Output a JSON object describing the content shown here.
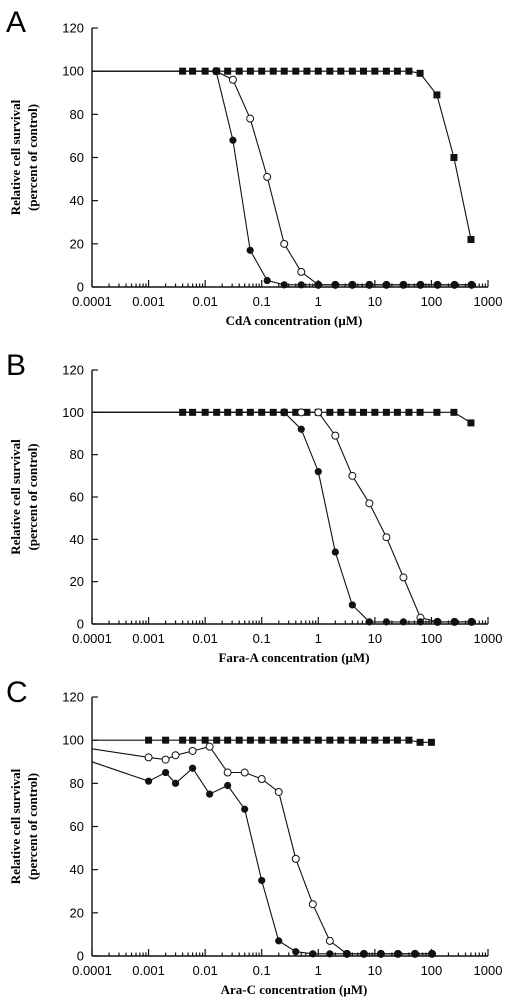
{
  "chart_data": [
    {
      "type": "line",
      "panel_label": "A",
      "xlabel": "CdA  concentration  (μM)",
      "ylabel_line1": "Relative  cell  survival",
      "ylabel_line2": "(percent  of  control)",
      "xscale": "log",
      "xlim": [
        0.0001,
        1000
      ],
      "ylim": [
        0,
        120
      ],
      "xticks": [
        "0.0001",
        "0.001",
        "0.01",
        "0.1",
        "1",
        "10",
        "100",
        "1000"
      ],
      "yticks": [
        "0",
        "20",
        "40",
        "60",
        "80",
        "100",
        "120"
      ],
      "grid": false,
      "series": [
        {
          "marker": "filled-square",
          "x": [
            0.0001,
            0.004,
            0.006,
            0.01,
            0.016,
            0.025,
            0.04,
            0.063,
            0.1,
            0.16,
            0.25,
            0.4,
            0.63,
            1,
            1.6,
            2.5,
            4,
            6.3,
            10,
            16,
            25,
            40,
            63,
            125,
            250,
            500
          ],
          "y": [
            100,
            100,
            100,
            100,
            100,
            100,
            100,
            100,
            100,
            100,
            100,
            100,
            100,
            100,
            100,
            100,
            100,
            100,
            100,
            100,
            100,
            100,
            99,
            89,
            60,
            22
          ]
        },
        {
          "marker": "open-circle",
          "x": [
            0.0001,
            0.0156,
            0.031,
            0.0625,
            0.125,
            0.25,
            0.5,
            1,
            2,
            4,
            8,
            16,
            32,
            64,
            128,
            256,
            512
          ],
          "y": [
            100,
            100,
            96,
            78,
            51,
            20,
            7,
            1,
            1,
            1,
            1,
            1,
            1,
            1,
            1,
            1,
            1
          ]
        },
        {
          "marker": "filled-circle",
          "x": [
            0.0001,
            0.0156,
            0.031,
            0.0625,
            0.125,
            0.25,
            0.5,
            1,
            2,
            4,
            8,
            16,
            32,
            64,
            128,
            256,
            512
          ],
          "y": [
            100,
            100,
            68,
            17,
            3,
            1,
            1,
            1,
            1,
            1,
            1,
            1,
            1,
            1,
            1,
            1,
            1
          ]
        }
      ]
    },
    {
      "type": "line",
      "panel_label": "B",
      "xlabel": "Fara-A  concentration  (μM)",
      "ylabel_line1": "Relative  cell  survival",
      "ylabel_line2": "(percent  of  control)",
      "xscale": "log",
      "xlim": [
        0.0001,
        1000
      ],
      "ylim": [
        0,
        120
      ],
      "xticks": [
        "0.0001",
        "0.001",
        "0.01",
        "0.1",
        "1",
        "10",
        "100",
        "1000"
      ],
      "yticks": [
        "0",
        "20",
        "40",
        "60",
        "80",
        "100",
        "120"
      ],
      "grid": false,
      "series": [
        {
          "marker": "filled-square",
          "x": [
            0.0001,
            0.004,
            0.006,
            0.01,
            0.016,
            0.025,
            0.04,
            0.063,
            0.1,
            0.16,
            0.25,
            0.4,
            0.63,
            1,
            1.6,
            2.5,
            4,
            6.3,
            10,
            16,
            25,
            40,
            63,
            125,
            250,
            500
          ],
          "y": [
            100,
            100,
            100,
            100,
            100,
            100,
            100,
            100,
            100,
            100,
            100,
            100,
            100,
            100,
            100,
            100,
            100,
            100,
            100,
            100,
            100,
            100,
            100,
            100,
            100,
            95
          ]
        },
        {
          "marker": "open-circle",
          "x": [
            0.0001,
            0.25,
            0.5,
            1,
            2,
            4,
            8,
            16,
            32,
            64,
            128,
            256,
            512
          ],
          "y": [
            100,
            100,
            100,
            100,
            89,
            70,
            57,
            41,
            22,
            3,
            1,
            1,
            1
          ]
        },
        {
          "marker": "filled-circle",
          "x": [
            0.0001,
            0.25,
            0.5,
            1,
            2,
            4,
            8,
            16,
            32,
            64,
            128,
            256,
            512
          ],
          "y": [
            100,
            100,
            92,
            72,
            34,
            9,
            1,
            1,
            1,
            1,
            1,
            1,
            1
          ]
        }
      ]
    },
    {
      "type": "line",
      "panel_label": "C",
      "xlabel": "Ara-C  concentration  (μM)",
      "ylabel_line1": "Relative  cell  survival",
      "ylabel_line2": "(percent  of  control)",
      "xscale": "log",
      "xlim": [
        0.0001,
        1000
      ],
      "ylim": [
        0,
        120
      ],
      "xticks": [
        "0.0001",
        "0.001",
        "0.01",
        "0.1",
        "1",
        "10",
        "100",
        "1000"
      ],
      "yticks": [
        "0",
        "20",
        "40",
        "60",
        "80",
        "100",
        "120"
      ],
      "grid": false,
      "series": [
        {
          "marker": "filled-square",
          "x": [
            0.0001,
            0.001,
            0.002,
            0.004,
            0.006,
            0.01,
            0.016,
            0.025,
            0.04,
            0.063,
            0.1,
            0.16,
            0.25,
            0.4,
            0.63,
            1,
            1.6,
            2.5,
            4,
            6.3,
            10,
            16,
            25,
            40,
            63,
            100
          ],
          "y": [
            100,
            100,
            100,
            100,
            100,
            100,
            100,
            100,
            100,
            100,
            100,
            100,
            100,
            100,
            100,
            100,
            100,
            100,
            100,
            100,
            100,
            100,
            100,
            100,
            99,
            99
          ]
        },
        {
          "marker": "open-circle",
          "x": [
            0.0001,
            0.001,
            0.002,
            0.003,
            0.006,
            0.012,
            0.025,
            0.05,
            0.1,
            0.2,
            0.4,
            0.8,
            1.6,
            3.2,
            6.4,
            12.8,
            25.6,
            51.2,
            102.4
          ],
          "y": [
            96,
            92,
            91,
            93,
            95,
            97,
            85,
            85,
            82,
            76,
            45,
            24,
            7,
            1,
            1,
            1,
            1,
            1,
            1
          ]
        },
        {
          "marker": "filled-circle",
          "x": [
            0.0001,
            0.001,
            0.002,
            0.003,
            0.006,
            0.012,
            0.025,
            0.05,
            0.1,
            0.2,
            0.4,
            0.8,
            1.6,
            3.2,
            6.4,
            12.8,
            25.6,
            51.2,
            102.4
          ],
          "y": [
            90,
            81,
            85,
            80,
            87,
            75,
            79,
            68,
            35,
            7,
            2,
            1,
            1,
            1,
            1,
            1,
            1,
            1,
            1
          ]
        }
      ]
    }
  ]
}
